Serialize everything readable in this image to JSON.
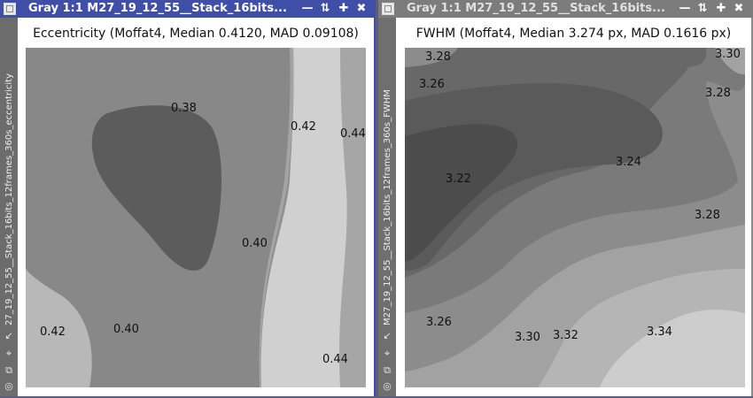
{
  "windows": [
    {
      "title": "Gray 1:1 M27_19_12_55__Stack_16bits...",
      "side_label": "27_19_12_55__Stack_16bits_12frames_360s_eccentricity",
      "plot_title": "Eccentricity (Moffat4, Median 0.4120, MAD 0.09108)",
      "contour_labels": [
        "0.38",
        "0.42",
        "0.44",
        "0.40",
        "0.42",
        "0.40",
        "0.44"
      ]
    },
    {
      "title": "Gray 1:1 M27_19_12_55__Stack_16bits...",
      "side_label": "M27_19_12_55__Stack_16bits_12frames_360s_FWHM",
      "plot_title": "FWHM (Moffat4, Median 3.274 px, MAD 0.1616 px)",
      "contour_labels": [
        "3.28",
        "3.30",
        "3.26",
        "3.28",
        "3.24",
        "3.22",
        "3.28",
        "3.26",
        "3.30",
        "3.32",
        "3.34"
      ]
    }
  ],
  "titlebar_buttons": [
    "minimize",
    "restore",
    "maximize",
    "close"
  ],
  "colors": {
    "active_titlebar": "#3f4fa8",
    "inactive_titlebar": "#7c7c7c",
    "desktop": "#5a5e78"
  }
}
